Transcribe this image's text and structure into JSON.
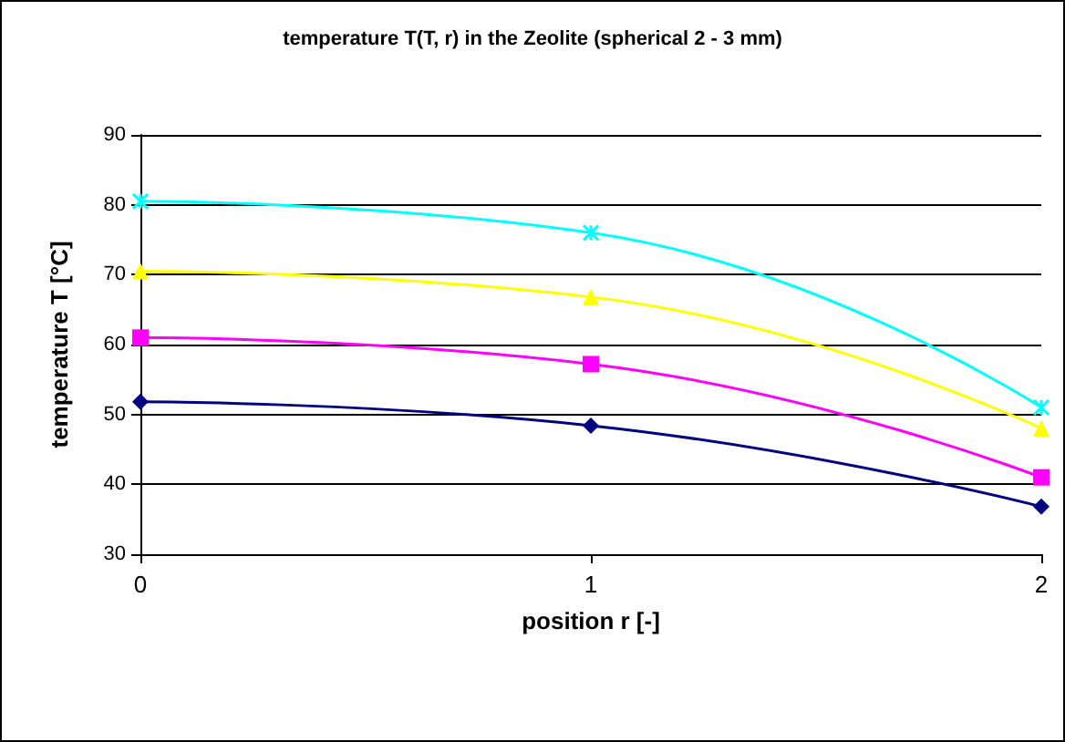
{
  "chart_data": {
    "type": "line",
    "title": "temperature T(T, r) in the Zeolite (spherical 2 - 3 mm)",
    "xlabel": "position r [-]",
    "ylabel": "temperature T [°C]",
    "x": [
      0,
      1,
      2
    ],
    "xlim": [
      0,
      2
    ],
    "xticks": [
      0,
      1,
      2
    ],
    "ylim": [
      30,
      90
    ],
    "yticks": [
      30,
      40,
      50,
      60,
      70,
      80,
      90
    ],
    "grid": "y",
    "series": [
      {
        "color": "#000080",
        "marker": "diamond",
        "values": [
          51.8,
          48.4,
          36.8
        ]
      },
      {
        "color": "#ff00ff",
        "marker": "square",
        "values": [
          61,
          57.2,
          41
        ]
      },
      {
        "color": "#ffff00",
        "marker": "triangle",
        "values": [
          70.5,
          66.8,
          48
        ]
      },
      {
        "color": "#00ffff",
        "marker": "cross",
        "values": [
          80.5,
          76,
          51
        ]
      }
    ]
  }
}
